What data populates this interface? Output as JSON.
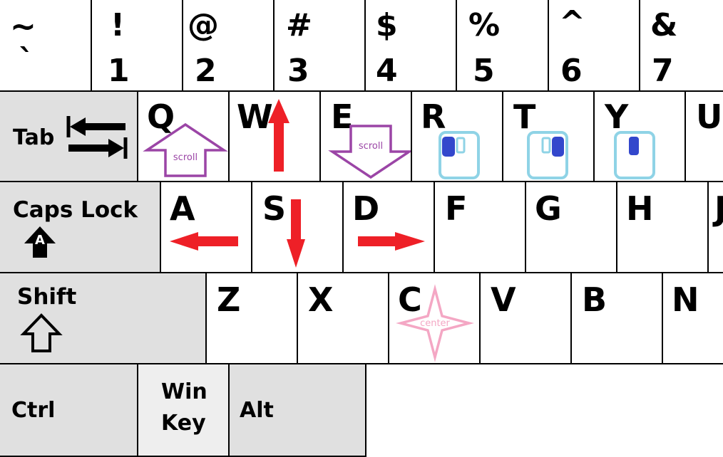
{
  "number_row": [
    {
      "top": "~",
      "bottom": "`"
    },
    {
      "top": "!",
      "bottom": "1"
    },
    {
      "top": "@",
      "bottom": "2"
    },
    {
      "top": "#",
      "bottom": "3"
    },
    {
      "top": "$",
      "bottom": "4"
    },
    {
      "top": "%",
      "bottom": "5"
    },
    {
      "top": "^",
      "bottom": "6"
    },
    {
      "top": "&",
      "bottom": "7"
    }
  ],
  "qwerty_row": {
    "tab": "Tab",
    "keys": [
      "Q",
      "W",
      "E",
      "R",
      "T",
      "Y",
      "U"
    ]
  },
  "home_row": {
    "caps": "Caps Lock",
    "caps_icon_letter": "A",
    "keys": [
      "A",
      "S",
      "D",
      "F",
      "G",
      "H",
      "J"
    ]
  },
  "bottom_row": {
    "shift": "Shift",
    "keys": [
      "Z",
      "X",
      "C",
      "V",
      "B",
      "N"
    ]
  },
  "modifier_row": {
    "ctrl": "Ctrl",
    "win_line1": "Win",
    "win_line2": "Key",
    "alt": "Alt"
  },
  "overlays": {
    "scroll_label": "scroll",
    "center_label": "center"
  },
  "colors": {
    "arrow_red": "#ee2027",
    "scroll_purple": "#9b45a6",
    "mouse_outline": "#8fd3e6",
    "mouse_button": "#3347cc",
    "center_pink": "#f4a7c4",
    "modifier_bg": "#e0e0e0"
  },
  "icons": {
    "W": "arrow-up-icon",
    "A": "arrow-left-icon",
    "S": "arrow-down-icon",
    "D": "arrow-right-icon",
    "Q": "scroll-up-icon",
    "E": "scroll-down-icon",
    "R": "mouse-left-click-icon",
    "T": "mouse-right-click-icon",
    "Y": "mouse-middle-click-icon",
    "C": "center-icon",
    "Tab": "tab-arrows-icon",
    "CapsLock": "caps-lock-icon",
    "Shift": "shift-icon"
  }
}
